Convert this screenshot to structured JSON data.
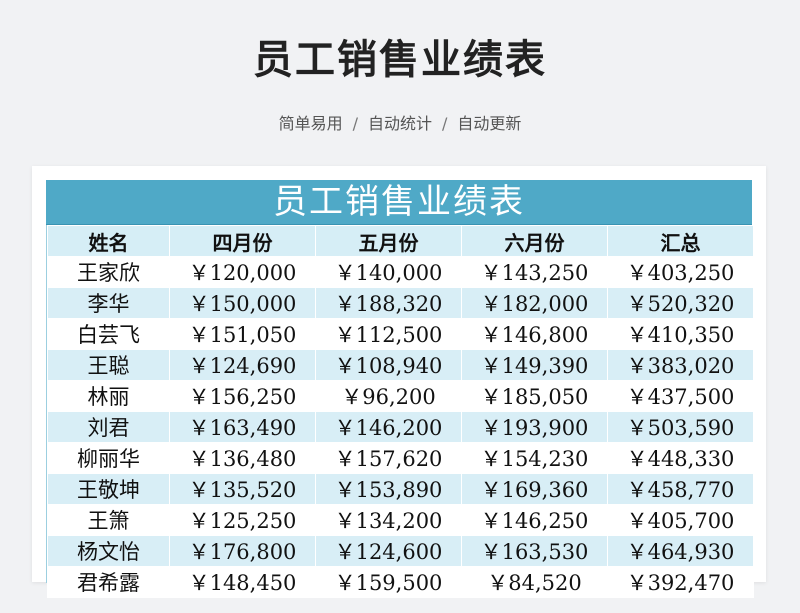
{
  "header": {
    "title": "员工销售业绩表",
    "tags": [
      "简单易用",
      "自动统计",
      "自动更新"
    ],
    "separator": "/"
  },
  "sheet": {
    "title": "员工销售业绩表",
    "columns": [
      "姓名",
      "四月份",
      "五月份",
      "六月份",
      "汇总"
    ],
    "rows": [
      [
        "王家欣",
        "￥120,000",
        "￥140,000",
        "￥143,250",
        "￥403,250"
      ],
      [
        "李华",
        "￥150,000",
        "￥188,320",
        "￥182,000",
        "￥520,320"
      ],
      [
        "白芸飞",
        "￥151,050",
        "￥112,500",
        "￥146,800",
        "￥410,350"
      ],
      [
        "王聪",
        "￥124,690",
        "￥108,940",
        "￥149,390",
        "￥383,020"
      ],
      [
        "林丽",
        "￥156,250",
        "￥96,200",
        "￥185,050",
        "￥437,500"
      ],
      [
        "刘君",
        "￥163,490",
        "￥146,200",
        "￥193,900",
        "￥503,590"
      ],
      [
        "柳丽华",
        "￥136,480",
        "￥157,620",
        "￥154,230",
        "￥448,330"
      ],
      [
        "王敬坤",
        "￥135,520",
        "￥153,890",
        "￥169,360",
        "￥458,770"
      ],
      [
        "王箫",
        "￥125,250",
        "￥134,200",
        "￥146,250",
        "￥405,700"
      ],
      [
        "杨文怡",
        "￥176,800",
        "￥124,600",
        "￥163,530",
        "￥464,930"
      ],
      [
        "君希露",
        "￥148,450",
        "￥159,500",
        "￥84,520",
        "￥392,470"
      ]
    ]
  },
  "colors": {
    "title_bar": "#4fa9c7",
    "header_row": "#d6eef6",
    "stripe": "#d8eef6",
    "background": "#f1f2f4"
  }
}
